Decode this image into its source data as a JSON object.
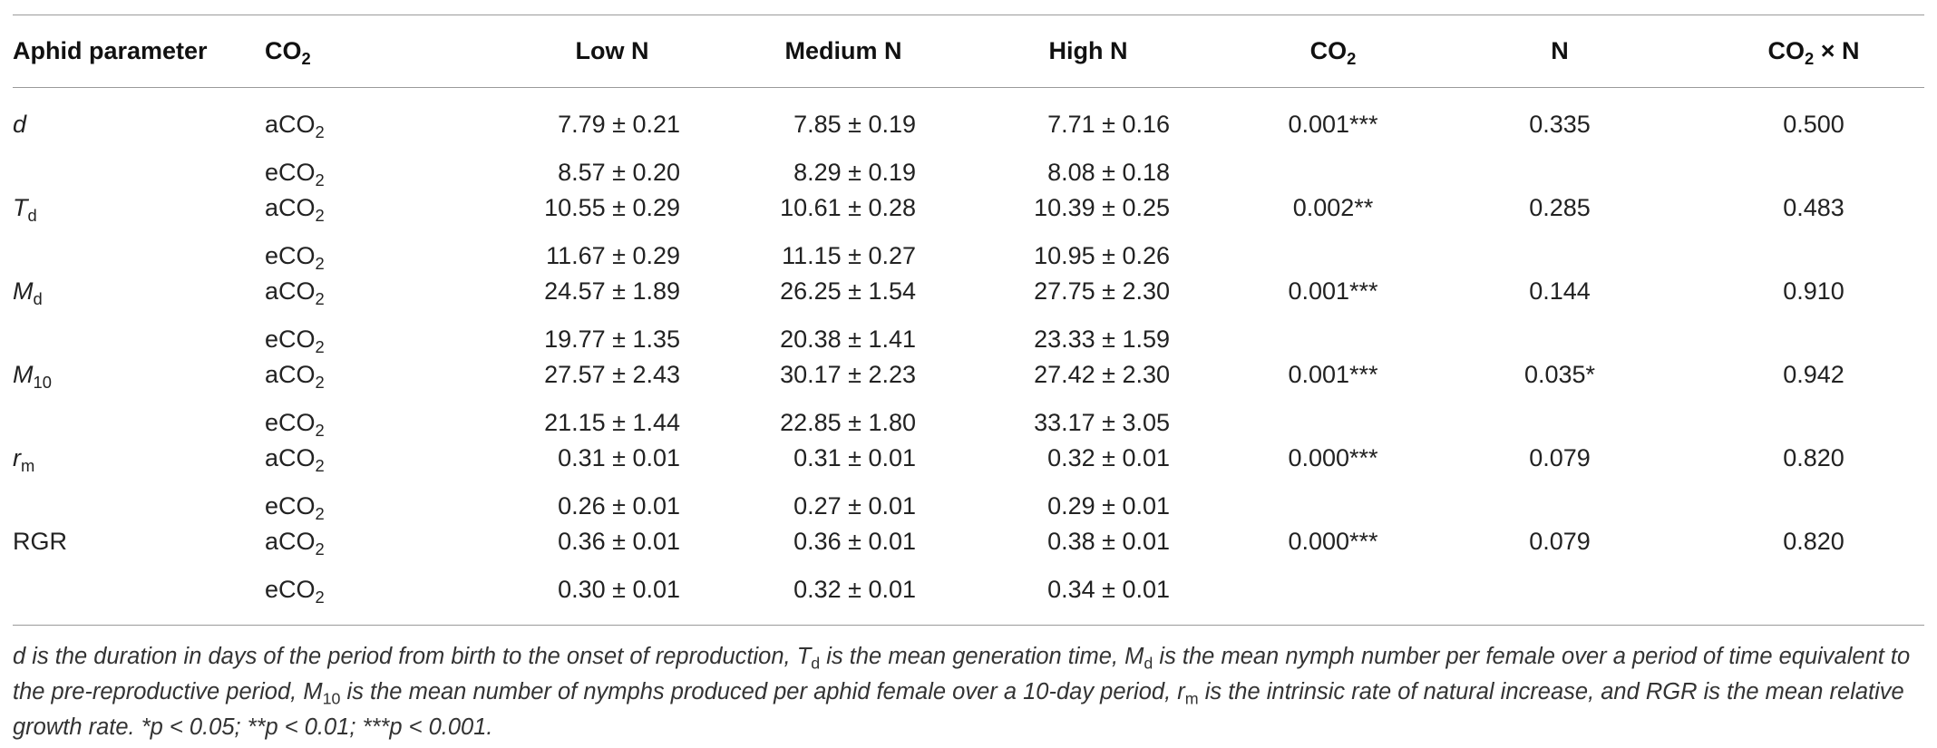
{
  "header": {
    "param": "Aphid parameter",
    "co2": "CO",
    "co2_sub": "2",
    "low_n": "Low N",
    "medium_n": "Medium N",
    "high_n": "High N",
    "p_co2": "CO",
    "p_co2_sub": "2",
    "p_n": "N",
    "p_inter_a": "CO",
    "p_inter_sub": "2",
    "p_inter_b": " × N"
  },
  "rows": [
    {
      "param": "d",
      "param_sub": "",
      "level_a": "aCO",
      "level_a_sub": "2",
      "level_e": "eCO",
      "level_e_sub": "2",
      "a_low": "7.79 ± 0.21",
      "a_med": "7.85 ± 0.19",
      "a_high": "7.71 ± 0.16",
      "e_low": "8.57 ± 0.20",
      "e_med": "8.29 ± 0.19",
      "e_high": "8.08 ± 0.18",
      "p_co2": "0.001***",
      "p_n": "0.335",
      "p_inter": "0.500"
    },
    {
      "param": "T",
      "param_sub": "d",
      "level_a": "aCO",
      "level_a_sub": "2",
      "level_e": "eCO",
      "level_e_sub": "2",
      "a_low": "10.55 ± 0.29",
      "a_med": "10.61 ± 0.28",
      "a_high": "10.39 ± 0.25",
      "e_low": "11.67 ± 0.29",
      "e_med": "11.15 ± 0.27",
      "e_high": "10.95 ± 0.26",
      "p_co2": "0.002**",
      "p_n": "0.285",
      "p_inter": "0.483"
    },
    {
      "param": "M",
      "param_sub": "d",
      "level_a": "aCO",
      "level_a_sub": "2",
      "level_e": "eCO",
      "level_e_sub": "2",
      "a_low": "24.57 ± 1.89",
      "a_med": "26.25 ± 1.54",
      "a_high": "27.75 ± 2.30",
      "e_low": "19.77 ± 1.35",
      "e_med": "20.38 ± 1.41",
      "e_high": "23.33 ± 1.59",
      "p_co2": "0.001***",
      "p_n": "0.144",
      "p_inter": "0.910"
    },
    {
      "param": "M",
      "param_sub": "10",
      "level_a": "aCO",
      "level_a_sub": "2",
      "level_e": "eCO",
      "level_e_sub": "2",
      "a_low": "27.57 ± 2.43",
      "a_med": "30.17 ± 2.23",
      "a_high": "27.42 ± 2.30",
      "e_low": "21.15 ± 1.44",
      "e_med": "22.85 ± 1.80",
      "e_high": "33.17 ± 3.05",
      "p_co2": "0.001***",
      "p_n": "0.035*",
      "p_inter": "0.942"
    },
    {
      "param": "r",
      "param_sub": "m",
      "level_a": "aCO",
      "level_a_sub": "2",
      "level_e": "eCO",
      "level_e_sub": "2",
      "a_low": "0.31 ± 0.01",
      "a_med": "0.31 ± 0.01",
      "a_high": "0.32 ± 0.01",
      "e_low": "0.26 ± 0.01",
      "e_med": "0.27 ± 0.01",
      "e_high": "0.29 ± 0.01",
      "p_co2": "0.000***",
      "p_n": "0.079",
      "p_inter": "0.820"
    },
    {
      "param": "RGR",
      "param_sub": "",
      "level_a": "aCO",
      "level_a_sub": "2",
      "level_e": "eCO",
      "level_e_sub": "2",
      "a_low": "0.36 ± 0.01",
      "a_med": "0.36 ± 0.01",
      "a_high": "0.38 ± 0.01",
      "e_low": "0.30 ± 0.01",
      "e_med": "0.32 ± 0.01",
      "e_high": "0.34 ± 0.01",
      "p_co2": "0.000***",
      "p_n": "0.079",
      "p_inter": "0.820"
    }
  ],
  "footnote": {
    "d": "d",
    "t1": " is the duration in days of the period from birth to the onset of reproduction, ",
    "T": "T",
    "T_sub": "d",
    "t2": " is the mean generation time, ",
    "M": "M",
    "M_sub": "d",
    "t3": " is the mean nymph number per female over a period of time equivalent to the pre-reproductive period, ",
    "M10": "M",
    "M10_sub": "10",
    "t4": " is the mean number of nymphs produced per aphid female over a 10-day period, ",
    "r": "r",
    "r_sub": "m",
    "t5": " is the intrinsic rate of natural increase, and RGR is the mean relative growth rate. *p < 0.05; **p < 0.01; ***p < 0.001."
  }
}
